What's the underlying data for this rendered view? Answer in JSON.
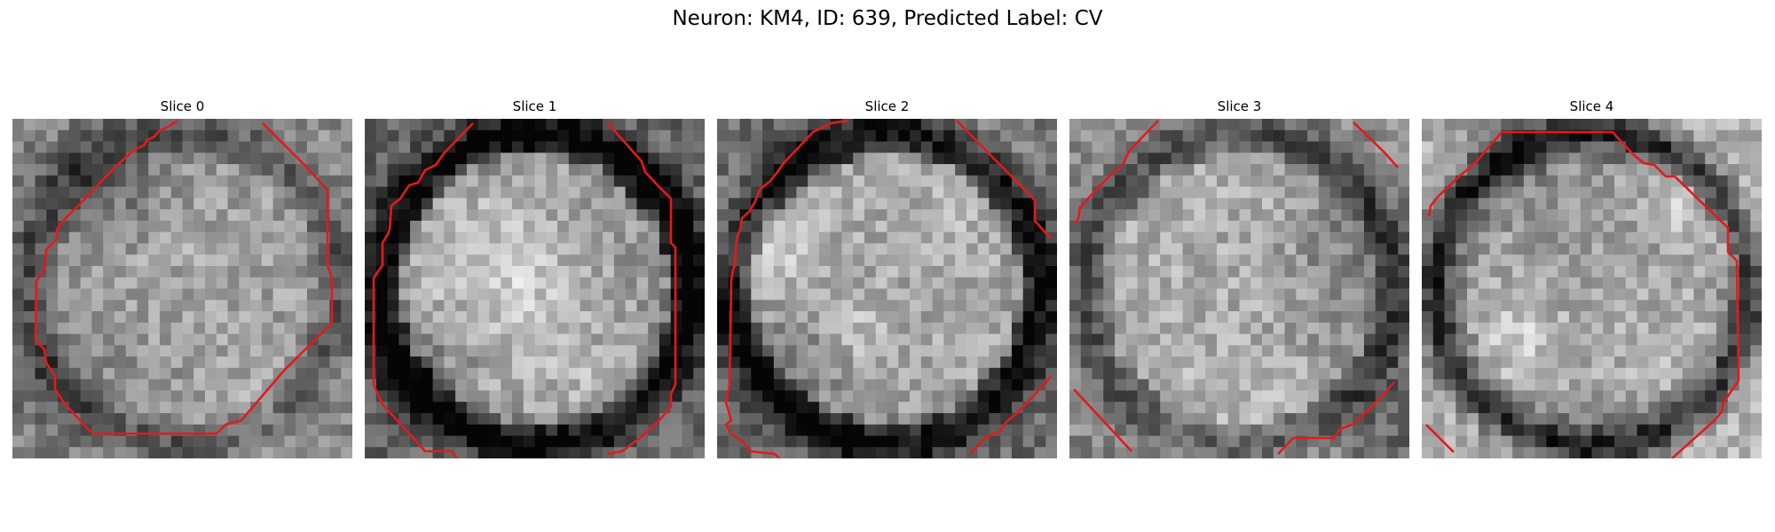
{
  "figure": {
    "title": "Neuron: KM4, ID: 639, Predicted Label: CV"
  },
  "contour_color": "#e31a1c",
  "panels": [
    {
      "title": "Slice 0",
      "seed": 11,
      "center_brightness": 0.62,
      "edge_brightness": 0.55,
      "dark_ring": 0.2
    },
    {
      "title": "Slice 1",
      "seed": 23,
      "center_brightness": 0.64,
      "edge_brightness": 0.4,
      "dark_ring": 0.45
    },
    {
      "title": "Slice 2",
      "seed": 37,
      "center_brightness": 0.66,
      "edge_brightness": 0.42,
      "dark_ring": 0.4
    },
    {
      "title": "Slice 3",
      "seed": 41,
      "center_brightness": 0.68,
      "edge_brightness": 0.55,
      "dark_ring": 0.25
    },
    {
      "title": "Slice 4",
      "seed": 59,
      "center_brightness": 0.62,
      "edge_brightness": 0.7,
      "dark_ring": 0.55
    }
  ]
}
